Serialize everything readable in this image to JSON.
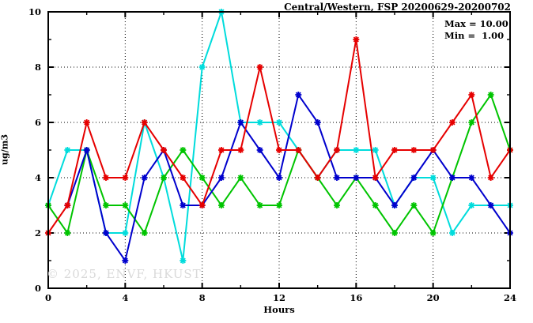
{
  "chart": {
    "title": "Central/Western, FSP 20200629-20200702",
    "legend": {
      "max_label": "Max = 10.00",
      "min_label": "Min =  1.00"
    },
    "watermark": "© 2025, ENVF, HKUST",
    "xlabel": "Hours",
    "ylabel": "ug/m3"
  },
  "chart_data": {
    "type": "line",
    "title": "Central/Western, FSP 20200629-20200702",
    "xlabel": "Hours",
    "ylabel": "ug/m3",
    "x": [
      0,
      1,
      2,
      3,
      4,
      5,
      6,
      7,
      8,
      9,
      10,
      11,
      12,
      13,
      14,
      15,
      16,
      17,
      18,
      19,
      20,
      21,
      22,
      23,
      24
    ],
    "series": [
      {
        "name": "series-cyan",
        "color": "#00dcdc",
        "values": [
          3,
          5,
          5,
          2,
          2,
          6,
          4,
          1,
          8,
          10,
          6,
          6,
          6,
          5,
          4,
          5,
          5,
          5,
          3,
          4,
          4,
          2,
          3,
          3,
          3
        ]
      },
      {
        "name": "series-green",
        "color": "#00c400",
        "values": [
          3,
          2,
          5,
          3,
          3,
          2,
          4,
          5,
          4,
          3,
          4,
          3,
          3,
          5,
          4,
          3,
          4,
          3,
          2,
          3,
          2,
          4,
          6,
          7,
          5
        ]
      },
      {
        "name": "series-blue",
        "color": "#0000cd",
        "values": [
          null,
          3,
          5,
          2,
          1,
          4,
          5,
          3,
          3,
          4,
          6,
          5,
          4,
          7,
          6,
          4,
          4,
          4,
          3,
          4,
          5,
          4,
          4,
          3,
          2
        ]
      },
      {
        "name": "series-red",
        "color": "#e60000",
        "values": [
          2,
          3,
          6,
          4,
          4,
          6,
          5,
          4,
          3,
          5,
          5,
          8,
          5,
          5,
          4,
          5,
          9,
          4,
          5,
          5,
          5,
          6,
          7,
          4,
          5
        ]
      }
    ],
    "xlim": [
      0,
      24
    ],
    "ylim": [
      0,
      10
    ],
    "x_major_ticks": [
      0,
      4,
      8,
      12,
      16,
      20,
      24
    ],
    "x_minor_step": 2,
    "y_major_ticks": [
      0,
      2,
      4,
      6,
      8,
      10
    ],
    "y_minor_step": 1,
    "x_grid": [
      4,
      8,
      12,
      16,
      20
    ],
    "y_grid": [
      2,
      4,
      6,
      8
    ],
    "grid_style": "dotted",
    "legend_lines": [
      "Max = 10.00",
      "Min =  1.00"
    ],
    "legend_position": "top-right-inside",
    "annotations": [
      "© 2025, ENVF, HKUST"
    ]
  }
}
